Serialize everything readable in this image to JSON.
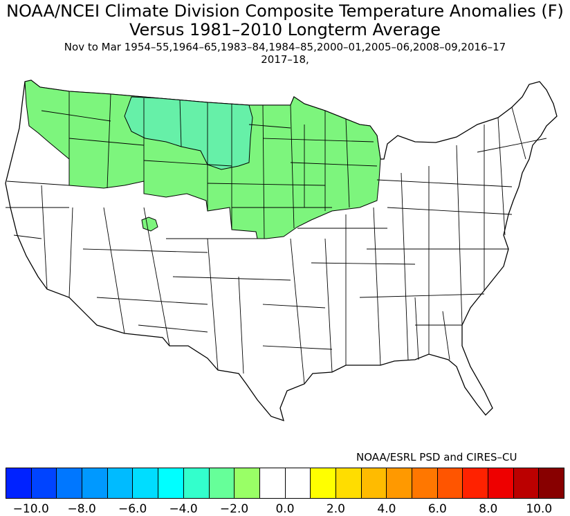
{
  "titles": {
    "line1": "NOAA/NCEI Climate Division Composite Temperature Anomalies (F)",
    "line2": "Versus 1981–2010 Longterm Average",
    "line3": "Nov to Mar  1954–55,1964–65,1983–84,1984–85,2000–01,2005–06,2008–09,2016–17",
    "line4": "2017–18,"
  },
  "credit": "NOAA/ESRL PSD and CIRES–CU",
  "colorbar": {
    "colors": [
      "#0022ff",
      "#0044ff",
      "#0077ff",
      "#0099ff",
      "#00bbff",
      "#00ddff",
      "#00ffff",
      "#33ffcc",
      "#66ff99",
      "#99ff66",
      "#ffffff",
      "#ffffff",
      "#ffff00",
      "#ffdd00",
      "#ffbb00",
      "#ff9900",
      "#ff7700",
      "#ff5500",
      "#ff2200",
      "#ee0000",
      "#bb0000",
      "#880000"
    ],
    "tick_labels": [
      "−10.0",
      "−8.0",
      "−6.0",
      "−4.0",
      "−2.0",
      "0.0",
      "2.0",
      "4.0",
      "6.0",
      "8.0",
      "10.0"
    ]
  },
  "anomaly_regions": {
    "weak_cool_color": "#7df57d",
    "moderate_cool_color": "#66f0a8",
    "weak_cool_range": "-2.0 to -1.0",
    "moderate_cool_range": "-3.0 to -2.0",
    "other_color": "#ffffff"
  }
}
